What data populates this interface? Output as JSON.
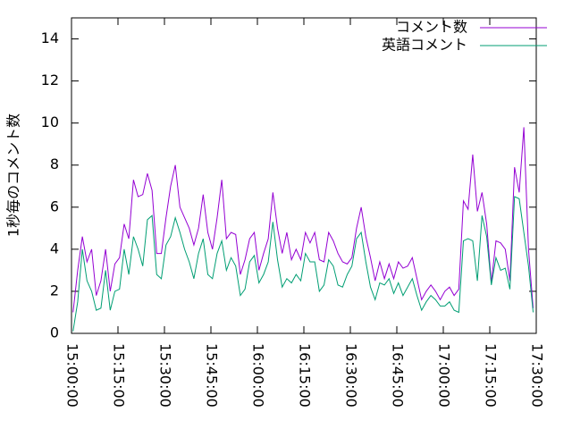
{
  "chart_data": {
    "type": "line",
    "y_label": "1秒毎のコメント数",
    "x": [
      "15:00:30",
      "15:02:00",
      "15:03:30",
      "15:05:00",
      "15:06:30",
      "15:08:00",
      "15:09:30",
      "15:11:00",
      "15:12:30",
      "15:14:00",
      "15:15:30",
      "15:17:00",
      "15:18:30",
      "15:20:00",
      "15:21:30",
      "15:23:00",
      "15:24:30",
      "15:26:00",
      "15:27:30",
      "15:29:00",
      "15:30:30",
      "15:32:00",
      "15:33:30",
      "15:35:00",
      "15:36:30",
      "15:38:00",
      "15:39:30",
      "15:41:00",
      "15:42:30",
      "15:44:00",
      "15:45:30",
      "15:47:00",
      "15:48:30",
      "15:50:00",
      "15:51:30",
      "15:53:00",
      "15:54:30",
      "15:56:00",
      "15:57:30",
      "15:59:00",
      "16:00:30",
      "16:02:00",
      "16:03:30",
      "16:05:00",
      "16:06:30",
      "16:08:00",
      "16:09:30",
      "16:11:00",
      "16:12:30",
      "16:14:00",
      "16:15:30",
      "16:17:00",
      "16:18:30",
      "16:20:00",
      "16:21:30",
      "16:23:00",
      "16:24:30",
      "16:26:00",
      "16:27:30",
      "16:29:00",
      "16:30:30",
      "16:32:00",
      "16:33:30",
      "16:35:00",
      "16:36:30",
      "16:38:00",
      "16:39:30",
      "16:41:00",
      "16:42:30",
      "16:44:00",
      "16:45:30",
      "16:47:00",
      "16:48:30",
      "16:50:00",
      "16:51:30",
      "16:53:00",
      "16:54:30",
      "16:56:00",
      "16:57:30",
      "16:59:00",
      "17:00:30",
      "17:02:00",
      "17:03:30",
      "17:05:00",
      "17:06:30",
      "17:08:00",
      "17:09:30",
      "17:11:00",
      "17:12:30",
      "17:14:00",
      "17:15:30",
      "17:17:00",
      "17:18:30",
      "17:20:00",
      "17:21:30",
      "17:23:00",
      "17:24:30",
      "17:26:00",
      "17:27:30",
      "17:29:00"
    ],
    "series": [
      {
        "name": "コメント数",
        "color": "#9400d3",
        "values": [
          1.0,
          3.0,
          4.6,
          3.4,
          4.0,
          1.8,
          2.5,
          4.0,
          2.0,
          3.3,
          3.6,
          5.2,
          4.5,
          7.3,
          6.5,
          6.6,
          7.6,
          6.8,
          3.8,
          3.8,
          5.5,
          7.0,
          8.0,
          6.0,
          5.5,
          5.0,
          4.2,
          5.0,
          6.6,
          4.8,
          4.0,
          5.5,
          7.3,
          4.5,
          4.8,
          4.7,
          2.8,
          3.5,
          4.5,
          4.8,
          3.0,
          3.8,
          4.5,
          6.7,
          5.0,
          3.8,
          4.8,
          3.5,
          4.0,
          3.5,
          4.8,
          4.3,
          4.8,
          3.5,
          3.4,
          4.8,
          4.4,
          3.8,
          3.4,
          3.3,
          3.6,
          5.0,
          6.0,
          4.6,
          3.6,
          2.5,
          3.4,
          2.6,
          3.3,
          2.6,
          3.4,
          3.1,
          3.2,
          3.6,
          2.6,
          1.6,
          2.0,
          2.3,
          2.0,
          1.6,
          2.0,
          2.2,
          1.8,
          2.1,
          6.3,
          5.9,
          8.5,
          5.8,
          6.7,
          5.2,
          2.4,
          4.4,
          4.3,
          4.0,
          2.5,
          7.9,
          6.7,
          9.8,
          4.0,
          1.2
        ]
      },
      {
        "name": "英語コメント",
        "color": "#009e73",
        "values": [
          0.1,
          1.5,
          4.0,
          2.5,
          2.0,
          1.1,
          1.2,
          3.0,
          1.1,
          2.0,
          2.1,
          4.0,
          2.8,
          4.6,
          4.0,
          3.2,
          5.4,
          5.6,
          2.8,
          2.6,
          4.2,
          4.6,
          5.5,
          4.8,
          4.0,
          3.4,
          2.6,
          3.8,
          4.5,
          2.8,
          2.6,
          3.8,
          4.4,
          3.0,
          3.6,
          3.2,
          1.8,
          2.1,
          3.4,
          3.7,
          2.4,
          2.8,
          3.4,
          5.3,
          3.5,
          2.2,
          2.6,
          2.4,
          2.8,
          2.5,
          3.8,
          3.4,
          3.4,
          2.0,
          2.3,
          3.5,
          3.2,
          2.3,
          2.2,
          2.8,
          3.2,
          4.5,
          4.8,
          3.4,
          2.2,
          1.6,
          2.4,
          2.3,
          2.6,
          1.9,
          2.4,
          1.8,
          2.2,
          2.6,
          1.8,
          1.1,
          1.5,
          1.8,
          1.6,
          1.3,
          1.3,
          1.5,
          1.1,
          1.0,
          4.4,
          4.5,
          4.4,
          2.5,
          5.6,
          4.6,
          2.3,
          3.6,
          3.0,
          3.1,
          2.1,
          6.5,
          6.4,
          4.8,
          3.2,
          1.0
        ]
      }
    ],
    "xlim": [
      "15:00:00",
      "17:30:00"
    ],
    "xticks": [
      "15:00:00",
      "15:15:00",
      "15:30:00",
      "15:45:00",
      "16:00:00",
      "16:15:00",
      "16:30:00",
      "16:45:00",
      "17:00:00",
      "17:15:00",
      "17:30:00"
    ],
    "ylim": [
      0,
      15
    ],
    "yticks": [
      0,
      2,
      4,
      6,
      8,
      10,
      12,
      14
    ],
    "grid": false,
    "legend": "top-right"
  }
}
